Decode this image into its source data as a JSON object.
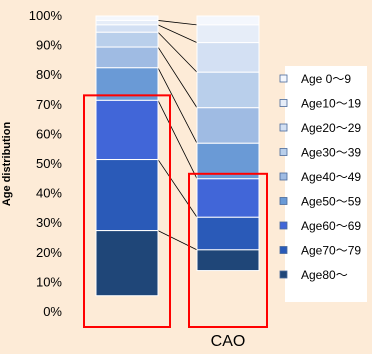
{
  "chart_data": {
    "type": "bar",
    "stacked": true,
    "normalized": true,
    "title": "",
    "xlabel": "",
    "ylabel": "Age distribution",
    "ylim": [
      0,
      100
    ],
    "y_ticks": [
      "0%",
      "10%",
      "20%",
      "30%",
      "40%",
      "50%",
      "60%",
      "70%",
      "80%",
      "90%",
      "100%"
    ],
    "categories": [
      "",
      "CAO"
    ],
    "legend_position": "right",
    "series": [
      {
        "name": "Age 0～9",
        "color": "#f4f7fd",
        "values": [
          1.5,
          3
        ]
      },
      {
        "name": "Age10～19",
        "color": "#e6edf8",
        "values": [
          1.5,
          6
        ]
      },
      {
        "name": "Age20～29",
        "color": "#d3e0f3",
        "values": [
          2.5,
          10
        ]
      },
      {
        "name": "Age30～39",
        "color": "#b9cfeb",
        "values": [
          5,
          12
        ]
      },
      {
        "name": "Age40～49",
        "color": "#9fbbe3",
        "values": [
          7,
          12
        ]
      },
      {
        "name": "Age50～59",
        "color": "#6a9ad6",
        "values": [
          11,
          12
        ]
      },
      {
        "name": "Age60～69",
        "color": "#4166d8",
        "values": [
          20,
          13
        ]
      },
      {
        "name": "Age70～79",
        "color": "#2a5ab8",
        "values": [
          24,
          11
        ]
      },
      {
        "name": "Age80～",
        "color": "#1f4678",
        "values": [
          22,
          7
        ]
      }
    ],
    "highlight_color": "#ff0000"
  }
}
